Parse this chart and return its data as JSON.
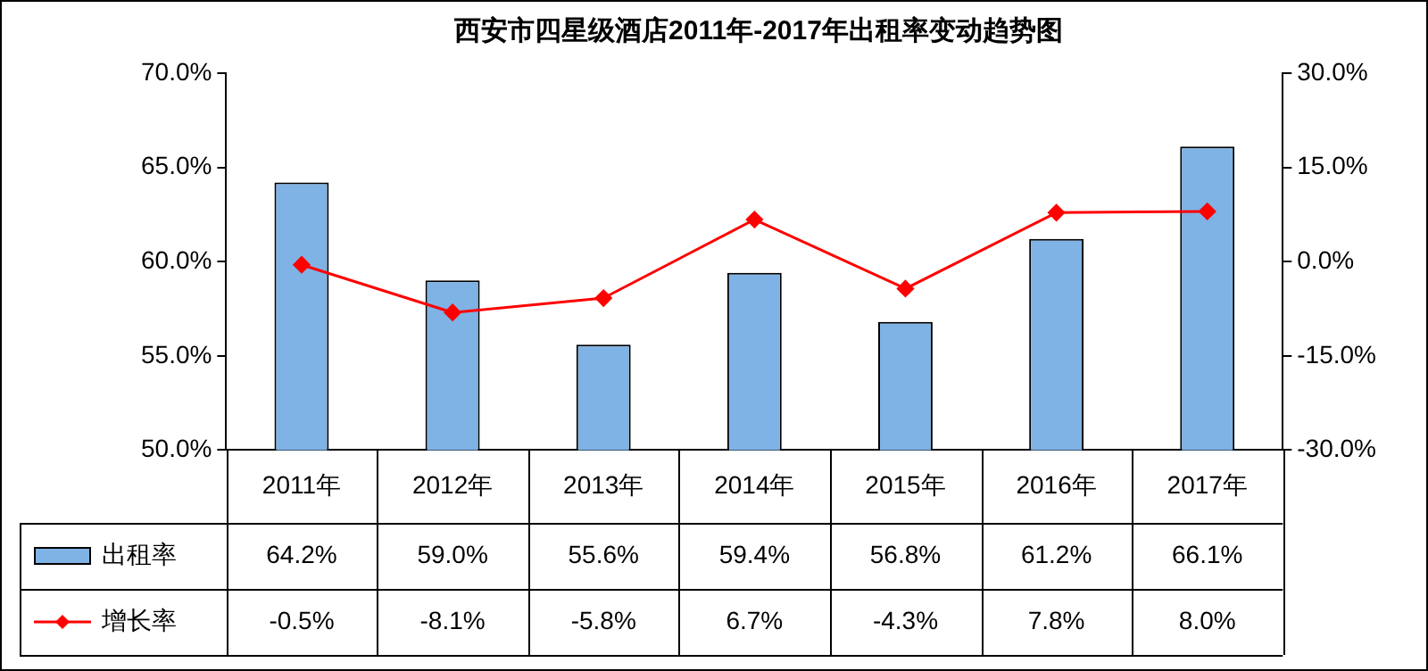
{
  "chart_data": {
    "type": "bar",
    "title": "西安市四星级酒店2011年-2017年出租率变动趋势图",
    "categories": [
      "2011年",
      "2012年",
      "2013年",
      "2014年",
      "2015年",
      "2016年",
      "2017年"
    ],
    "series": [
      {
        "name": "出租率",
        "color": "#7fb2e5",
        "values": [
          64.2,
          59.0,
          55.6,
          59.4,
          56.8,
          61.2,
          66.1
        ],
        "value_labels": [
          "64.2%",
          "59.0%",
          "55.6%",
          "59.4%",
          "56.8%",
          "61.2%",
          "66.1%"
        ]
      },
      {
        "name": "增长率",
        "type": "line",
        "axis": "y2",
        "color": "#ff0000",
        "values": [
          -0.5,
          -8.1,
          -5.8,
          6.7,
          -4.3,
          7.8,
          8.0
        ],
        "value_labels": [
          "-0.5%",
          "-8.1%",
          "-5.8%",
          "6.7%",
          "-4.3%",
          "7.8%",
          "8.0%"
        ]
      }
    ],
    "ylim": [
      50,
      70
    ],
    "yticks": [
      {
        "value": 50,
        "label": "50.0%"
      },
      {
        "value": 55,
        "label": "55.0%"
      },
      {
        "value": 60,
        "label": "60.0%"
      },
      {
        "value": 65,
        "label": "65.0%"
      },
      {
        "value": 70,
        "label": "70.0%"
      }
    ],
    "y2lim": [
      -30,
      30
    ],
    "y2ticks": [
      {
        "value": -30,
        "label": "-30.0%"
      },
      {
        "value": -15,
        "label": "-15.0%"
      },
      {
        "value": 0,
        "label": "0.0%"
      },
      {
        "value": 15,
        "label": "15.0%"
      },
      {
        "value": 30,
        "label": "30.0%"
      }
    ],
    "grid": false,
    "legend": "bottom",
    "marker": "diamond",
    "line_style": "solid"
  }
}
